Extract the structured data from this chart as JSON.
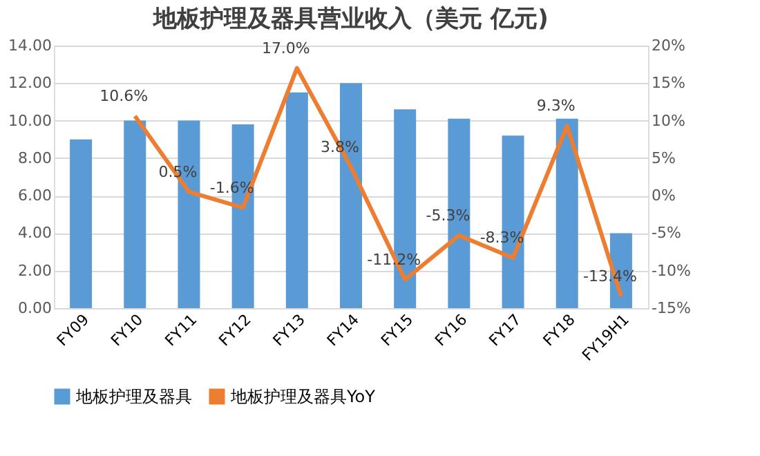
{
  "chart_data": {
    "type": "bar",
    "title": "地板护理及器具营业收入（美元 亿元)",
    "categories": [
      "FY09",
      "FY10",
      "FY11",
      "FY12",
      "FY13",
      "FY14",
      "FY15",
      "FY16",
      "FY17",
      "FY18",
      "FY19H1"
    ],
    "series": [
      {
        "name": "地板护理及器具",
        "color": "#5b9bd5",
        "values": [
          9.0,
          10.0,
          10.0,
          9.8,
          11.5,
          12.0,
          10.6,
          10.1,
          9.2,
          10.1,
          4.0
        ]
      },
      {
        "name": "地板护理及器具YoY",
        "type": "line",
        "axis": "y2",
        "color": "#ed7d31",
        "values": [
          null,
          10.6,
          0.5,
          -1.6,
          17.0,
          3.8,
          -11.2,
          -5.3,
          -8.3,
          9.3,
          -13.4
        ],
        "value_labels": [
          null,
          "10.6%",
          "0.5%",
          "-1.6%",
          "17.0%",
          "3.8%",
          "-11.2%",
          "-5.3%",
          "-8.3%",
          "9.3%",
          "-13.4%"
        ]
      }
    ],
    "ylim": [
      0,
      14
    ],
    "yticks": [
      {
        "value": 0,
        "label": "0.00"
      },
      {
        "value": 2,
        "label": "2.00"
      },
      {
        "value": 4,
        "label": "4.00"
      },
      {
        "value": 6,
        "label": "6.00"
      },
      {
        "value": 8,
        "label": "8.00"
      },
      {
        "value": 10,
        "label": "10.00"
      },
      {
        "value": 12,
        "label": "12.00"
      },
      {
        "value": 14,
        "label": "14.00"
      }
    ],
    "y2lim": [
      -15,
      20
    ],
    "y2ticks": [
      {
        "value": -15,
        "label": "-15%"
      },
      {
        "value": -10,
        "label": "-10%"
      },
      {
        "value": -5,
        "label": "-5%"
      },
      {
        "value": 0,
        "label": "0%"
      },
      {
        "value": 5,
        "label": "5%"
      },
      {
        "value": 10,
        "label": "10%"
      },
      {
        "value": 15,
        "label": "15%"
      },
      {
        "value": 20,
        "label": "20%"
      }
    ],
    "grid": "y",
    "legend": "bottom",
    "marker": "none",
    "line_style": "solid"
  }
}
